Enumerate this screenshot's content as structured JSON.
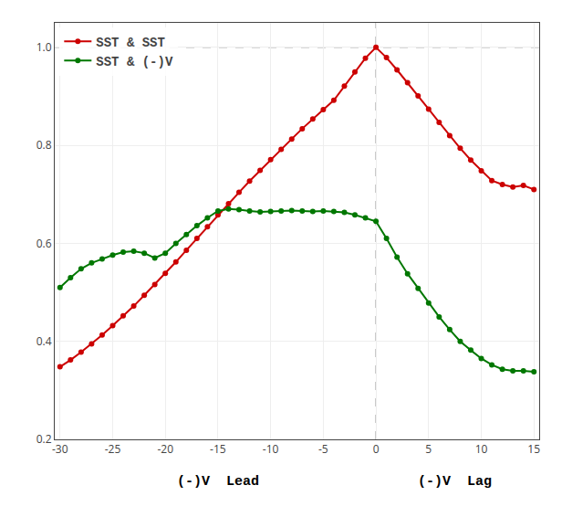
{
  "chart_data": {
    "type": "line",
    "x": [
      -30,
      -29,
      -28,
      -27,
      -26,
      -25,
      -24,
      -23,
      -22,
      -21,
      -20,
      -19,
      -18,
      -17,
      -16,
      -15,
      -14,
      -13,
      -12,
      -11,
      -10,
      -9,
      -8,
      -7,
      -6,
      -5,
      -4,
      -3,
      -2,
      -1,
      0,
      1,
      2,
      3,
      4,
      5,
      6,
      7,
      8,
      9,
      10,
      11,
      12,
      13,
      14,
      15
    ],
    "series": [
      {
        "name": "SST & SST",
        "color": "#cc0000",
        "marker": "circle",
        "line_style": "solid",
        "values": [
          0.348,
          0.362,
          0.378,
          0.395,
          0.413,
          0.432,
          0.452,
          0.472,
          0.494,
          0.516,
          0.539,
          0.562,
          0.586,
          0.61,
          0.634,
          0.658,
          0.681,
          0.704,
          0.727,
          0.749,
          0.771,
          0.792,
          0.813,
          0.834,
          0.854,
          0.873,
          0.892,
          0.921,
          0.95,
          0.978,
          1.0,
          0.979,
          0.954,
          0.928,
          0.901,
          0.874,
          0.847,
          0.82,
          0.794,
          0.77,
          0.748,
          0.728,
          0.72,
          0.715,
          0.718,
          0.71
        ]
      },
      {
        "name": "SST & (-)V",
        "color": "#007700",
        "marker": "circle",
        "line_style": "solid",
        "values": [
          0.51,
          0.53,
          0.548,
          0.56,
          0.568,
          0.576,
          0.582,
          0.584,
          0.58,
          0.57,
          0.58,
          0.6,
          0.618,
          0.636,
          0.652,
          0.666,
          0.67,
          0.669,
          0.666,
          0.664,
          0.665,
          0.666,
          0.667,
          0.666,
          0.665,
          0.666,
          0.665,
          0.663,
          0.658,
          0.652,
          0.645,
          0.61,
          0.572,
          0.538,
          0.508,
          0.478,
          0.45,
          0.424,
          0.4,
          0.382,
          0.365,
          0.352,
          0.343,
          0.34,
          0.34,
          0.338
        ]
      }
    ],
    "xlim": [
      -30.5,
      15.5
    ],
    "ylim": [
      0.2,
      1.05
    ],
    "xticks": [
      -30,
      -25,
      -20,
      -15,
      -10,
      -5,
      0,
      5,
      10,
      15
    ],
    "yticks": [
      0.2,
      0.4,
      0.6,
      0.8,
      {
        "value": 1.0,
        "label": "1.0"
      }
    ],
    "hline": 1.0,
    "vline": 0,
    "annotations": [
      {
        "text": "(-)V  Lead",
        "x": -15
      },
      {
        "text": "(-)V  Lag",
        "x": 7.5
      }
    ],
    "grid": true,
    "legend": "upper left"
  }
}
